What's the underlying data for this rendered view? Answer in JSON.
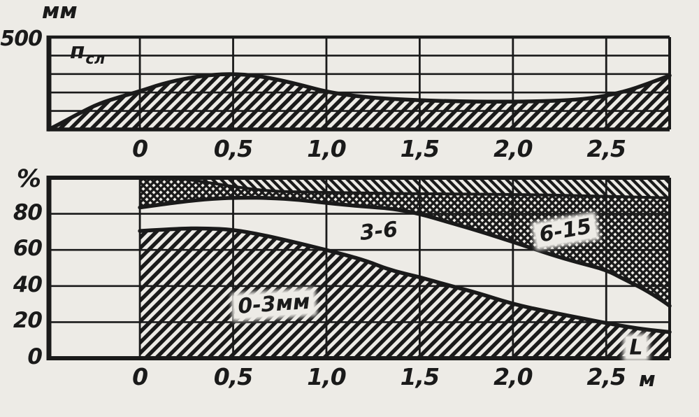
{
  "page": {
    "paper_color": "#edebe6",
    "ink_color": "#1a1a1a"
  },
  "chart_data": [
    {
      "type": "area",
      "name": "layer-depth-profile",
      "ylabel": "мм",
      "curve_label": {
        "base": "п",
        "sub": "сл"
      },
      "ylim": [
        0,
        500
      ],
      "xlim": [
        -0.4875,
        2.84
      ],
      "y_ticks": [
        {
          "v": 500,
          "t": "500"
        }
      ],
      "y_grid": [
        100,
        200,
        300,
        400
      ],
      "x_ticks": [
        {
          "v": 0,
          "t": "0"
        },
        {
          "v": 0.5,
          "t": "0,5"
        },
        {
          "v": 1.0,
          "t": "1,0"
        },
        {
          "v": 1.5,
          "t": "1,5"
        },
        {
          "v": 2.0,
          "t": "2,0"
        },
        {
          "v": 2.5,
          "t": "2,5"
        }
      ],
      "grid": true,
      "curves": [
        {
          "name": "layer-thickness-mm",
          "points": [
            [
              -0.4875,
              0
            ],
            [
              -0.42,
              35
            ],
            [
              -0.33,
              85
            ],
            [
              -0.22,
              140
            ],
            [
              -0.1,
              178
            ],
            [
              0,
              207
            ],
            [
              0.12,
              247
            ],
            [
              0.25,
              277
            ],
            [
              0.38,
              296
            ],
            [
              0.5,
              301
            ],
            [
              0.62,
              292
            ],
            [
              0.75,
              268
            ],
            [
              0.88,
              236
            ],
            [
              1.0,
              204
            ],
            [
              1.15,
              181
            ],
            [
              1.3,
              168
            ],
            [
              1.5,
              158
            ],
            [
              1.7,
              152
            ],
            [
              1.9,
              150
            ],
            [
              2.1,
              151
            ],
            [
              2.3,
              158
            ],
            [
              2.45,
              172
            ],
            [
              2.6,
              205
            ],
            [
              2.72,
              246
            ],
            [
              2.84,
              292
            ]
          ]
        }
      ],
      "regions": [
        {
          "lower": "baseline",
          "upper": 0,
          "pattern": "hatch-fwd"
        }
      ],
      "labels": []
    },
    {
      "type": "stacked-area",
      "name": "granulometric-composition",
      "ylabel": "%",
      "xlabel": "м",
      "ylim": [
        0,
        100
      ],
      "xlim": [
        -0.4875,
        2.84
      ],
      "y_ticks": [
        {
          "v": 0,
          "t": "0"
        },
        {
          "v": 20,
          "t": "20"
        },
        {
          "v": 40,
          "t": "40"
        },
        {
          "v": 60,
          "t": "60"
        },
        {
          "v": 80,
          "t": "80"
        }
      ],
      "y_grid": [
        20,
        40,
        60,
        80
      ],
      "x_ticks": [
        {
          "v": 0,
          "t": "0"
        },
        {
          "v": 0.5,
          "t": "0,5"
        },
        {
          "v": 1.0,
          "t": "1,0"
        },
        {
          "v": 1.5,
          "t": "1,5"
        },
        {
          "v": 2.0,
          "t": "2,0"
        },
        {
          "v": 2.5,
          "t": "2,5"
        }
      ],
      "grid": true,
      "curves": [
        {
          "name": "fraction-0-3mm-top",
          "points": [
            [
              0,
              70.5
            ],
            [
              0.2,
              71.8
            ],
            [
              0.35,
              72
            ],
            [
              0.5,
              71.2
            ],
            [
              0.65,
              68.5
            ],
            [
              0.8,
              65
            ],
            [
              1.0,
              60
            ],
            [
              1.2,
              54.5
            ],
            [
              1.35,
              48.5
            ],
            [
              1.5,
              45
            ],
            [
              1.65,
              40.5
            ],
            [
              1.8,
              36.5
            ],
            [
              2.0,
              30
            ],
            [
              2.2,
              25.5
            ],
            [
              2.4,
              21.5
            ],
            [
              2.55,
              18.5
            ],
            [
              2.7,
              16
            ],
            [
              2.84,
              14.5
            ]
          ]
        },
        {
          "name": "fraction-3-6-top",
          "points": [
            [
              0,
              83.5
            ],
            [
              0.2,
              86.5
            ],
            [
              0.4,
              88.5
            ],
            [
              0.55,
              89
            ],
            [
              0.7,
              88.8
            ],
            [
              0.85,
              87.8
            ],
            [
              1.0,
              86
            ],
            [
              1.2,
              84
            ],
            [
              1.35,
              83
            ],
            [
              1.5,
              80
            ],
            [
              1.65,
              75.5
            ],
            [
              1.8,
              71
            ],
            [
              2.0,
              64.5
            ],
            [
              2.2,
              57.5
            ],
            [
              2.35,
              53
            ],
            [
              2.5,
              49
            ],
            [
              2.6,
              43.5
            ],
            [
              2.7,
              38.5
            ],
            [
              2.8,
              32
            ],
            [
              2.84,
              29
            ]
          ]
        },
        {
          "name": "fraction-6-15-top",
          "points": [
            [
              0,
              100
            ],
            [
              0.15,
              100
            ],
            [
              0.3,
              98.5
            ],
            [
              0.5,
              95
            ],
            [
              0.7,
              92.5
            ],
            [
              0.9,
              92
            ],
            [
              1.2,
              91.5
            ],
            [
              1.6,
              91
            ],
            [
              2.0,
              90.8
            ],
            [
              2.4,
              90
            ],
            [
              2.84,
              88.8
            ]
          ]
        }
      ],
      "regions": [
        {
          "lower": "baseline",
          "upper": 0,
          "pattern": "hatch-fwd"
        },
        {
          "lower": 1,
          "upper": 2,
          "pattern": "crosshatch"
        },
        {
          "lower": 2,
          "upper": "top",
          "pattern": "hatch-back"
        }
      ],
      "labels": [
        {
          "text": "0-3мм",
          "x": 0.72,
          "y": 30,
          "halo": true,
          "tilt": -4
        },
        {
          "text": "3-6",
          "x": 1.28,
          "y": 70,
          "halo": false,
          "tilt": -6
        },
        {
          "text": "6-15",
          "x": 2.28,
          "y": 70.5,
          "halo": true,
          "tilt": -10
        },
        {
          "text": "L",
          "x": 2.66,
          "y": 6,
          "halo": true,
          "tilt": 0
        }
      ]
    }
  ]
}
